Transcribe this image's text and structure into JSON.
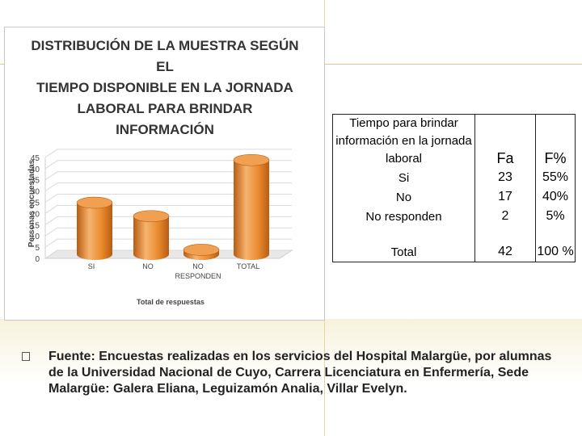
{
  "chart_data": {
    "type": "bar",
    "title": "DISTRIBUCIÓN DE LA MUESTRA SEGÚN EL TIEMPO DISPONIBLE EN LA JORNADA LABORAL PARA BRINDAR INFORMACIÓN",
    "title_lines": [
      "DISTRIBUCIÓN DE LA MUESTRA SEGÚN EL",
      "TIEMPO DISPONIBLE EN LA JORNADA",
      "LABORAL PARA BRINDAR INFORMACIÓN"
    ],
    "categories": [
      "SI",
      "NO",
      "NO RESPONDEN",
      "TOTAL"
    ],
    "category_lines": [
      [
        "SI"
      ],
      [
        "NO"
      ],
      [
        "NO",
        "RESPONDEN"
      ],
      [
        "TOTAL"
      ]
    ],
    "values": [
      23,
      17,
      2,
      42
    ],
    "xlabel": "Total de respuestas",
    "ylabel": "Personas encuestadas",
    "ylim": [
      0,
      45
    ],
    "yticks": [
      "0",
      "5",
      "10",
      "15",
      "20",
      "25",
      "30",
      "35",
      "40",
      "45"
    ],
    "grid": true,
    "bar_style": "3d-cylinder",
    "colors": {
      "bar": "#e98a2e",
      "bar_dark": "#b85c12",
      "bar_light": "#f6b46e",
      "bar_top": "#f0a050",
      "axis_text": "#444444"
    }
  },
  "table": {
    "header": {
      "label": "Tiempo para brindar información en la jornada laboral",
      "fa": "Fa",
      "fp": "F%"
    },
    "rows": [
      {
        "label": "Si",
        "fa": "23",
        "fp": "55%"
      },
      {
        "label": "No",
        "fa": "17",
        "fp": "40%"
      },
      {
        "label": "No responden",
        "fa": "2",
        "fp": "5%"
      }
    ],
    "total": {
      "label": "Total",
      "fa": "42",
      "fp": "100 %"
    }
  },
  "source": {
    "bullet_icon": "square-bullet-icon",
    "text": "Fuente: Encuestas realizadas en los servicios del Hospital Malargüe, por alumnas de la Universidad Nacional de Cuyo, Carrera  Licenciatura  en Enfermería, Sede Malargüe: Galera Eliana, Leguizamón Analia, Villar Evelyn."
  }
}
